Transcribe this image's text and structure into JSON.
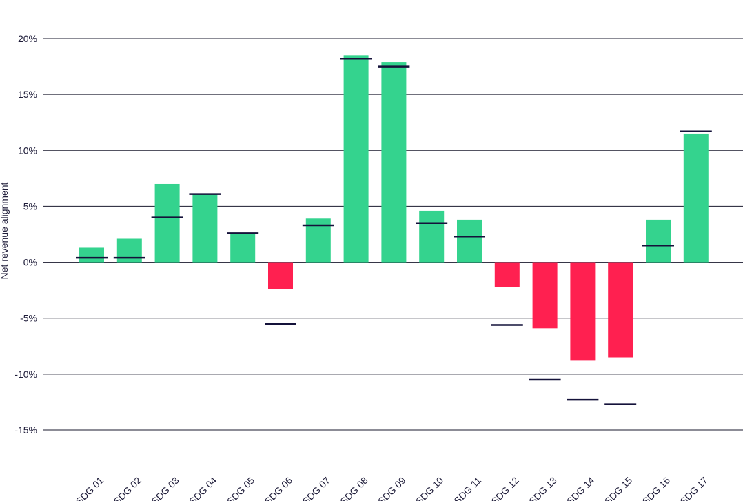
{
  "chart_data": {
    "type": "bar",
    "title": "",
    "xlabel": "",
    "ylabel": "Net revenue alignment",
    "ylim": [
      -15,
      20
    ],
    "yticks": [
      20,
      15,
      10,
      5,
      0,
      -5,
      -10,
      -15
    ],
    "ytick_labels": [
      "20%",
      "15%",
      "10%",
      "5%",
      "0%",
      "-5%",
      "-10%",
      "-15%"
    ],
    "grid": true,
    "categories": [
      "SDG 01",
      "SDG 02",
      "SDG 03",
      "SDG 04",
      "SDG 05",
      "SDG 06",
      "SDG 07",
      "SDG 08",
      "SDG 09",
      "SDG 10",
      "SDG 11",
      "SDG 12",
      "SDG 13",
      "SDG 14",
      "SDG 15",
      "SDG 16",
      "SDG 17"
    ],
    "series": [
      {
        "values": [
          1.3,
          2.1,
          7.0,
          6.1,
          2.6,
          -2.4,
          3.9,
          18.5,
          17.9,
          4.6,
          3.8,
          -2.2,
          -5.9,
          -8.8,
          -8.5,
          3.8,
          11.5
        ]
      },
      {
        "values": [
          0.4,
          0.4,
          4.0,
          6.1,
          2.6,
          -5.5,
          3.3,
          18.2,
          17.5,
          3.5,
          2.3,
          -5.6,
          -10.5,
          -12.3,
          -12.7,
          1.5,
          11.7
        ]
      }
    ],
    "colors": {
      "positive": "#34d38e",
      "negative": "#ff2050",
      "marker": "#14123a",
      "grid": "#1a1a2e",
      "text": "#1f1d3a"
    }
  }
}
